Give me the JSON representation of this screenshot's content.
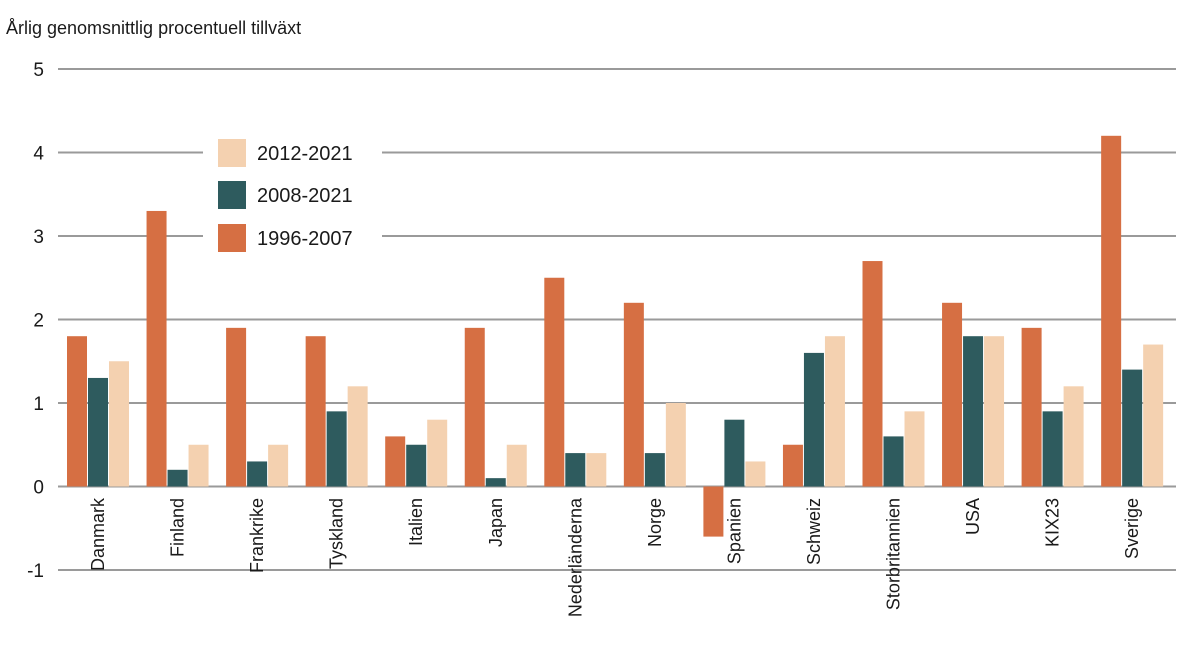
{
  "chart_data": {
    "type": "bar",
    "ylabel": "Årlig genomsnittlig procentuell tillväxt",
    "ylim": [
      -1,
      5
    ],
    "yticks": [
      "5",
      "4",
      "3",
      "2",
      "1",
      "0",
      "-1"
    ],
    "grid": true,
    "legend_position": "top-left",
    "categories": [
      "Danmark",
      "Finland",
      "Frankrike",
      "Tyskland",
      "Italien",
      "Japan",
      "Nederländerna",
      "Norge",
      "Spanien",
      "Schweiz",
      "Storbritannien",
      "USA",
      "KIX23",
      "Sverige"
    ],
    "series": [
      {
        "name": "1996-2007",
        "color": "#d66f43",
        "values": [
          1.8,
          3.3,
          1.9,
          1.8,
          0.6,
          1.9,
          2.5,
          2.2,
          -0.6,
          0.5,
          2.7,
          2.2,
          1.9,
          4.2
        ]
      },
      {
        "name": "2008-2021",
        "color": "#2e5b5e",
        "values": [
          1.3,
          0.2,
          0.3,
          0.9,
          0.5,
          0.1,
          0.4,
          0.4,
          0.8,
          1.6,
          0.6,
          1.8,
          0.9,
          1.4
        ]
      },
      {
        "name": "2012-2021",
        "color": "#f4d1b0",
        "values": [
          1.5,
          0.5,
          0.5,
          1.2,
          0.8,
          0.5,
          0.4,
          1.0,
          0.3,
          1.8,
          0.9,
          1.8,
          1.2,
          1.7
        ]
      }
    ],
    "legend_order": [
      "2012-2021",
      "2008-2021",
      "1996-2007"
    ],
    "axis_color": "#9a9a9a"
  }
}
